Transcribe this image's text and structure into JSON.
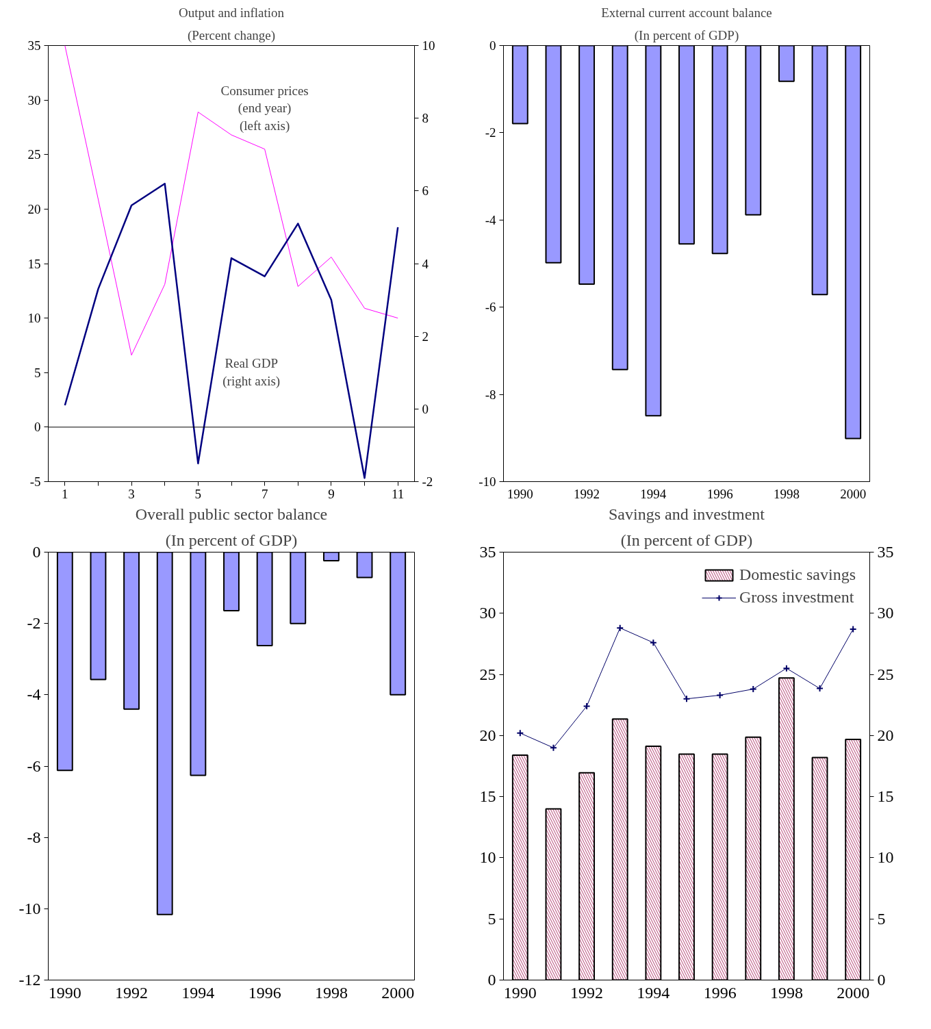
{
  "chart_data": [
    {
      "type": "line",
      "title": "Output and inflation",
      "subtitle": "(Percent change)",
      "x": [
        1,
        2,
        3,
        4,
        5,
        6,
        7,
        8,
        9,
        10,
        11
      ],
      "xlim": [
        0.5,
        11.5
      ],
      "xticks": [
        1,
        {
          "value": 2,
          "label": null
        },
        3,
        {
          "value": 4,
          "label": null
        },
        5,
        {
          "value": 6,
          "label": null
        },
        7,
        {
          "value": 8,
          "label": null
        },
        9,
        {
          "value": 10,
          "label": null
        },
        11
      ],
      "ylim": [
        -5,
        35
      ],
      "yticks": [
        -5,
        0,
        5,
        10,
        15,
        20,
        25,
        30,
        35
      ],
      "y2lim": [
        -2,
        10
      ],
      "y2ticks": [
        -2,
        0,
        2,
        4,
        6,
        8,
        10
      ],
      "series": [
        {
          "color": "#ff00ff",
          "values": [
            35,
            20.9,
            6.6,
            13.1,
            28.9,
            26.8,
            25.5,
            12.9,
            15.6,
            10.9,
            10.0
          ]
        },
        {
          "color": "#000080",
          "axis": "y2",
          "values": [
            0.1,
            3.3,
            5.6,
            6.2,
            -1.5,
            4.15,
            3.65,
            5.1,
            3.0,
            -1.9,
            5.0
          ]
        }
      ],
      "ref_lines": [
        {
          "axis": "y",
          "value": 0
        }
      ],
      "annotations": [
        "Consumer prices\n(end year)\n(left axis)",
        "Real GDP\n(right axis)"
      ],
      "grid": false,
      "legend": false
    },
    {
      "type": "bar",
      "title": "External current account balance",
      "subtitle": "(In percent of GDP)",
      "categories": [
        "1990",
        null,
        "1992",
        null,
        "1994",
        null,
        "1996",
        null,
        "1998",
        null,
        "2000"
      ],
      "values": [
        -1.79,
        -4.98,
        -5.47,
        -7.43,
        -8.49,
        -4.55,
        -4.77,
        -3.88,
        -0.82,
        -5.71,
        -9.01
      ],
      "color": "#9999ff",
      "ylim": [
        -10,
        0
      ],
      "yticks": [
        -10,
        -8,
        -6,
        -4,
        -2,
        0
      ],
      "grid": false,
      "legend": false
    },
    {
      "type": "bar",
      "title": "Overall public sector balance",
      "subtitle": "(In percent of GDP)",
      "categories": [
        "1990",
        null,
        "1992",
        null,
        "1994",
        null,
        "1996",
        null,
        "1998",
        null,
        "2000"
      ],
      "values": [
        -6.12,
        -3.57,
        -4.4,
        -10.16,
        -6.26,
        -1.64,
        -2.62,
        -2.0,
        -0.24,
        -0.71,
        -4.0
      ],
      "color": "#9999ff",
      "ylim": [
        -12,
        0
      ],
      "yticks": [
        -12,
        -10,
        -8,
        -6,
        -4,
        -2,
        0
      ],
      "grid": false,
      "legend": false
    },
    {
      "type": "bar",
      "title": "Savings and investment",
      "subtitle": "(In percent of GDP)",
      "categories": [
        "1990",
        null,
        "1992",
        null,
        "1994",
        null,
        "1996",
        null,
        "1998",
        null,
        "2000"
      ],
      "ylim": [
        0,
        35
      ],
      "yticks": [
        0,
        5,
        10,
        15,
        20,
        25,
        30,
        35
      ],
      "y2lim": [
        0,
        35
      ],
      "y2ticks": [
        0,
        5,
        10,
        15,
        20,
        25,
        30,
        35
      ],
      "series": [
        {
          "name": "Domestic savings",
          "type": "bar",
          "color": "#c0608a",
          "values": [
            18.4,
            14.0,
            16.95,
            21.35,
            19.13,
            18.48,
            18.48,
            19.87,
            24.71,
            18.2,
            19.68
          ]
        },
        {
          "name": "Gross investment",
          "type": "line",
          "color": "#000066",
          "marker": "cross",
          "values": [
            20.2,
            19.0,
            22.4,
            28.8,
            27.6,
            23.0,
            23.3,
            23.8,
            25.5,
            23.85,
            28.7
          ]
        }
      ],
      "grid": false,
      "legend": "top right"
    }
  ]
}
